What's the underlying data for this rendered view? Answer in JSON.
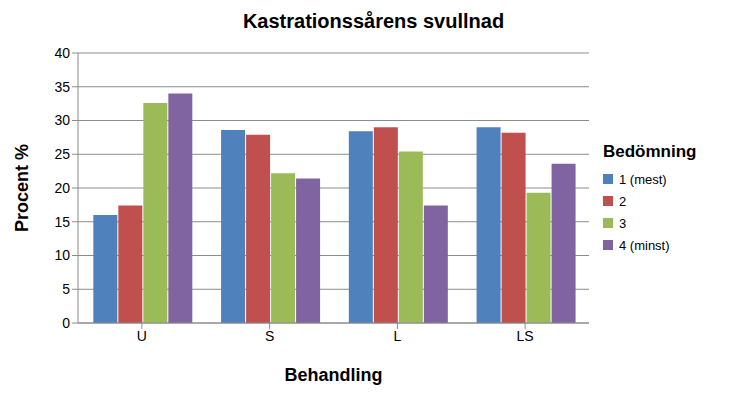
{
  "chart_data": {
    "type": "bar",
    "title": "Kastrationssårens svullnad",
    "x_label": "Behandling",
    "y_label": "Procent %",
    "legend_title": "Bedömning",
    "categories": [
      "U",
      "S",
      "L",
      "LS"
    ],
    "series": [
      {
        "name": "1 (mest)",
        "color": "#4f81bd",
        "values": [
          16,
          28.6,
          28.4,
          29
        ]
      },
      {
        "name": "2",
        "color": "#c0504d",
        "values": [
          17.4,
          27.9,
          29,
          28.2
        ]
      },
      {
        "name": "3",
        "color": "#9bbb59",
        "values": [
          32.6,
          22.2,
          25.4,
          19.3
        ]
      },
      {
        "name": "4 (minst)",
        "color": "#8064a2",
        "values": [
          34,
          21.4,
          17.4,
          23.6
        ]
      }
    ],
    "ylim": [
      0,
      40
    ],
    "yticks": [
      0,
      5,
      10,
      15,
      20,
      25,
      30,
      35,
      40
    ],
    "grid": true,
    "legend": "right"
  }
}
